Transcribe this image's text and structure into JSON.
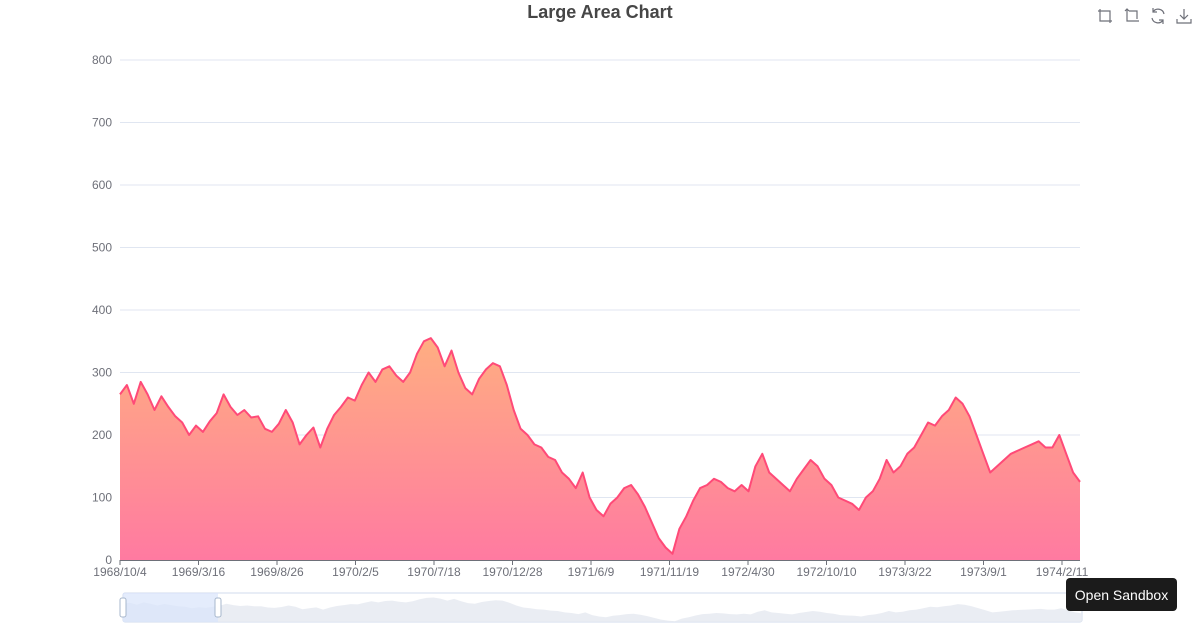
{
  "chart_data": {
    "type": "area",
    "title": "Large Area Chart",
    "xlabel": "",
    "ylabel": "",
    "ylim": [
      0,
      800
    ],
    "y_ticks": [
      0,
      100,
      200,
      300,
      400,
      500,
      600,
      700,
      800
    ],
    "x_tick_labels": [
      "1968/10/4",
      "1969/3/16",
      "1969/8/26",
      "1970/2/5",
      "1970/7/18",
      "1970/12/28",
      "1971/6/9",
      "1971/11/19",
      "1972/4/30",
      "1972/10/10",
      "1973/3/22",
      "1973/9/1",
      "1974/2/11"
    ],
    "grid": true,
    "legend": "none",
    "series": [
      {
        "values": [
          265,
          280,
          250,
          285,
          265,
          240,
          262,
          245,
          230,
          220,
          200,
          215,
          205,
          222,
          235,
          265,
          245,
          232,
          240,
          228,
          230,
          210,
          205,
          218,
          240,
          220,
          185,
          200,
          212,
          180,
          210,
          232,
          245,
          260,
          255,
          280,
          300,
          285,
          305,
          310,
          295,
          285,
          300,
          330,
          350,
          355,
          340,
          310,
          335,
          300,
          275,
          265,
          290,
          305,
          315,
          310,
          280,
          240,
          210,
          200,
          185,
          180,
          165,
          160,
          140,
          130,
          115,
          140,
          100,
          80,
          70,
          90,
          100,
          115,
          120,
          105,
          85,
          60,
          35,
          20,
          10,
          50,
          70,
          95,
          115,
          120,
          130,
          125,
          115,
          110,
          120,
          110,
          150,
          170,
          140,
          130,
          120,
          110,
          130,
          145,
          160,
          150,
          130,
          120,
          100,
          95,
          90,
          80,
          100,
          110,
          130,
          160,
          140,
          150,
          170,
          180,
          200,
          220,
          215,
          230,
          240,
          260,
          250,
          230,
          200,
          170,
          140,
          150,
          160,
          170,
          175,
          180,
          185,
          190,
          180,
          180,
          200,
          170,
          140,
          125
        ]
      }
    ],
    "colors": {
      "line": "#ff4a78",
      "area_top": "#ffae81",
      "area_bottom": "#ff7aa1",
      "grid": "#e0e6f1",
      "axis": "#6e7079",
      "title": "#464646",
      "datazoom_fill": "#d8e4fb",
      "datazoom_border": "#d2dbee",
      "datazoom_shadow": "#e5e8f0"
    }
  },
  "toolbox": {
    "icons": [
      "zoom-icon",
      "zoom-reset-icon",
      "restore-icon",
      "save-image-icon"
    ]
  },
  "sandbox_button": {
    "label": "Open Sandbox"
  }
}
